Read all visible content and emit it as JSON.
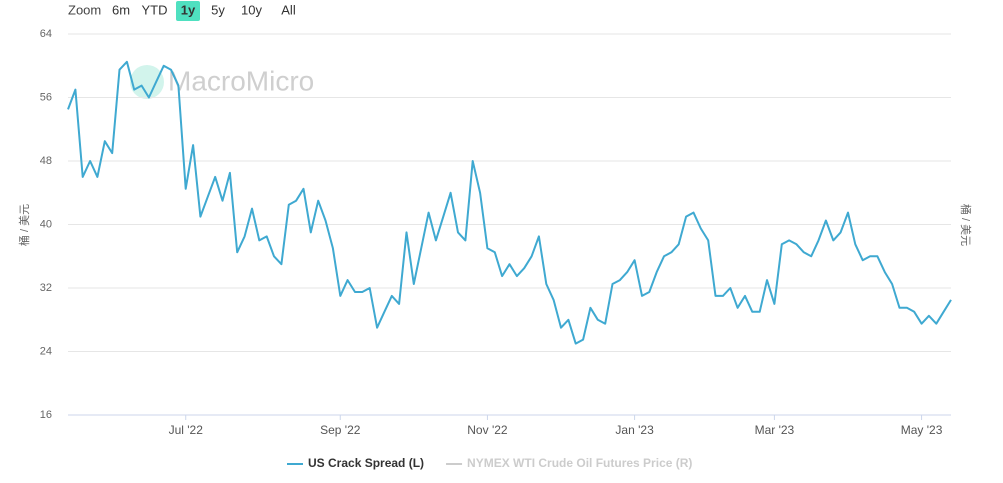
{
  "chart_data": {
    "type": "line",
    "zoom": {
      "label": "Zoom",
      "buttons": [
        "6m",
        "YTD",
        "1y",
        "5y",
        "10y",
        "All"
      ],
      "active": 2
    },
    "watermark": "MacroMicro",
    "y_label": "桶 / 美元",
    "y2_label": "桶 / 美元",
    "categories": [
      null,
      null,
      null,
      null,
      null,
      null,
      null,
      null,
      null,
      null,
      null,
      null,
      null,
      null,
      null,
      null,
      "Jul '22",
      null,
      null,
      null,
      null,
      null,
      null,
      null,
      null,
      null,
      null,
      null,
      null,
      null,
      null,
      null,
      null,
      null,
      null,
      null,
      null,
      "Sep '22",
      null,
      null,
      null,
      null,
      null,
      null,
      null,
      null,
      null,
      null,
      null,
      null,
      null,
      null,
      null,
      null,
      null,
      null,
      null,
      "Nov '22",
      null,
      null,
      null,
      null,
      null,
      null,
      null,
      null,
      null,
      null,
      null,
      null,
      null,
      null,
      null,
      null,
      null,
      null,
      null,
      "Jan '23",
      null,
      null,
      null,
      null,
      null,
      null,
      null,
      null,
      null,
      null,
      null,
      null,
      null,
      null,
      null,
      null,
      null,
      null,
      "Mar '23",
      null,
      null,
      null,
      null,
      null,
      null,
      null,
      null,
      null,
      null,
      null,
      null,
      null,
      null,
      null,
      null,
      null,
      null,
      null,
      "May '23",
      null,
      null,
      null,
      null
    ],
    "series": [
      {
        "name": "US Crack Spread (L)",
        "color": "#3fa9d1",
        "values": [
          54.5,
          57,
          46,
          48,
          46,
          50.5,
          49,
          59.5,
          60.5,
          57,
          57.5,
          56,
          58,
          60,
          59.5,
          57.5,
          44.5,
          50,
          41,
          43.5,
          46,
          43,
          46.5,
          36.5,
          38.5,
          42,
          38,
          38.5,
          36,
          35,
          42.5,
          43,
          44.5,
          39,
          43,
          40.5,
          37,
          31,
          33,
          31.5,
          31.5,
          32,
          27,
          29,
          31,
          30,
          39,
          32.5,
          37,
          41.5,
          38,
          41,
          44,
          39,
          38,
          48,
          44,
          37,
          36.5,
          33.5,
          35,
          33.5,
          34.5,
          36,
          38.5,
          32.5,
          30.5,
          27,
          28,
          25,
          25.5,
          29.5,
          28,
          27.5,
          32.5,
          33,
          34,
          35.5,
          31,
          31.5,
          34,
          36,
          36.5,
          37.5,
          41,
          41.5,
          39.5,
          38,
          31,
          31,
          32,
          29.5,
          31,
          29,
          29,
          33,
          30,
          37.5,
          38,
          37.5,
          36.5,
          36,
          38,
          40.5,
          38,
          39,
          41.5,
          37.5,
          35.5,
          36,
          36,
          34,
          32.5,
          29.5,
          29.5,
          29,
          27.5,
          28.5,
          27.5,
          29,
          30.5
        ]
      },
      {
        "name": "NYMEX WTI Crude Oil Futures Price (R)",
        "color": "#cccccc",
        "visible": false
      }
    ],
    "ylim": [
      16,
      64
    ],
    "yticks": [
      16,
      24,
      32,
      40,
      48,
      56,
      64
    ],
    "grid": true
  }
}
